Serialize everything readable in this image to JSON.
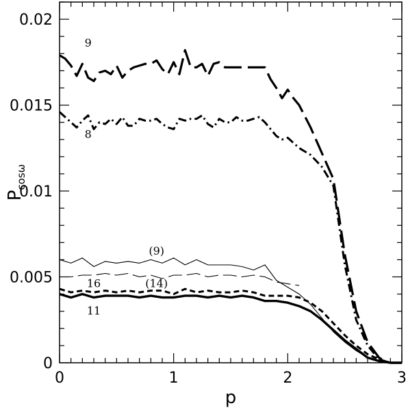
{
  "chart_data": {
    "type": "line",
    "xlabel": "p",
    "ylabel_main": "P",
    "ylabel_sub": "cosω",
    "xlim": [
      0,
      3
    ],
    "ylim": [
      0,
      0.021
    ],
    "xticks": [
      {
        "value": 0,
        "label": "0"
      },
      {
        "value": 1,
        "label": "1"
      },
      {
        "value": 2,
        "label": "2"
      },
      {
        "value": 3,
        "label": "3"
      }
    ],
    "yticks": [
      {
        "value": 0,
        "label": "0"
      },
      {
        "value": 0.005,
        "label": "0.005"
      },
      {
        "value": 0.01,
        "label": "0.01"
      },
      {
        "value": 0.015,
        "label": "0.015"
      },
      {
        "value": 0.02,
        "label": "0.02"
      }
    ],
    "grid": false,
    "series": [
      {
        "style": "long-dash-thick",
        "x": [
          0,
          0.05,
          0.1,
          0.15,
          0.2,
          0.25,
          0.3,
          0.35,
          0.4,
          0.45,
          0.5,
          0.55,
          0.6,
          0.65,
          0.7,
          0.75,
          0.8,
          0.85,
          0.9,
          0.95,
          1.0,
          1.05,
          1.1,
          1.15,
          1.2,
          1.25,
          1.3,
          1.35,
          1.4,
          1.45,
          1.5,
          1.55,
          1.6,
          1.65,
          1.7,
          1.75,
          1.8,
          1.85,
          1.9,
          1.95,
          2.0,
          2.05,
          2.1,
          2.2,
          2.3,
          2.4,
          2.5,
          2.6,
          2.7,
          2.8,
          2.85,
          2.9,
          3.0
        ],
        "y": [
          0.0179,
          0.0177,
          0.0173,
          0.0167,
          0.0174,
          0.0166,
          0.0164,
          0.0169,
          0.017,
          0.0168,
          0.0173,
          0.0166,
          0.017,
          0.0172,
          0.0173,
          0.0174,
          0.0174,
          0.0176,
          0.0171,
          0.0168,
          0.0175,
          0.0168,
          0.0182,
          0.0172,
          0.0172,
          0.0174,
          0.0167,
          0.0174,
          0.0175,
          0.0172,
          0.0172,
          0.0172,
          0.0172,
          0.0172,
          0.0172,
          0.0172,
          0.0172,
          0.0165,
          0.016,
          0.0154,
          0.0159,
          0.0154,
          0.015,
          0.0137,
          0.0122,
          0.0107,
          0.0063,
          0.003,
          0.0012,
          0.0003,
          0.0001,
          0.0,
          0.0
        ]
      },
      {
        "style": "dash-dot-thick",
        "x": [
          0,
          0.05,
          0.1,
          0.15,
          0.2,
          0.25,
          0.3,
          0.35,
          0.4,
          0.45,
          0.5,
          0.55,
          0.6,
          0.65,
          0.7,
          0.75,
          0.8,
          0.85,
          0.9,
          0.95,
          1.0,
          1.05,
          1.1,
          1.15,
          1.2,
          1.25,
          1.3,
          1.35,
          1.4,
          1.45,
          1.5,
          1.55,
          1.6,
          1.65,
          1.7,
          1.75,
          1.8,
          1.85,
          1.9,
          1.95,
          2.0,
          2.05,
          2.1,
          2.2,
          2.3,
          2.4,
          2.5,
          2.6,
          2.7,
          2.8,
          2.85,
          2.9,
          3.0
        ],
        "y": [
          0.0146,
          0.0143,
          0.014,
          0.0137,
          0.0141,
          0.0144,
          0.0136,
          0.014,
          0.0139,
          0.0142,
          0.0139,
          0.0143,
          0.0138,
          0.0138,
          0.0142,
          0.0141,
          0.0141,
          0.0142,
          0.0139,
          0.0137,
          0.0136,
          0.0142,
          0.0141,
          0.0142,
          0.0142,
          0.0144,
          0.0139,
          0.0137,
          0.0142,
          0.014,
          0.014,
          0.0143,
          0.0141,
          0.0141,
          0.0142,
          0.0143,
          0.014,
          0.0136,
          0.0132,
          0.013,
          0.0131,
          0.0128,
          0.0125,
          0.0121,
          0.0114,
          0.0103,
          0.0057,
          0.0025,
          0.001,
          0.0002,
          0.0001,
          0.0,
          0.0
        ]
      },
      {
        "style": "thin-solid",
        "x": [
          0,
          0.1,
          0.2,
          0.3,
          0.4,
          0.5,
          0.6,
          0.7,
          0.8,
          0.9,
          1.0,
          1.1,
          1.2,
          1.3,
          1.4,
          1.5,
          1.6,
          1.7,
          1.8,
          1.9,
          2.0,
          2.1,
          2.2,
          2.3,
          2.4,
          2.5,
          2.6,
          2.7,
          2.8,
          2.9,
          3.0
        ],
        "y": [
          0.006,
          0.0058,
          0.0061,
          0.0056,
          0.0059,
          0.0058,
          0.0059,
          0.0058,
          0.006,
          0.0058,
          0.0061,
          0.0057,
          0.006,
          0.0057,
          0.0057,
          0.0057,
          0.0056,
          0.0054,
          0.0057,
          0.0048,
          0.0044,
          0.004,
          0.0034,
          0.0026,
          0.0018,
          0.0012,
          0.0007,
          0.0003,
          0.0001,
          0.0,
          0.0
        ]
      },
      {
        "style": "thin-long-dash",
        "x": [
          0,
          0.1,
          0.2,
          0.3,
          0.4,
          0.5,
          0.6,
          0.7,
          0.8,
          0.9,
          1.0,
          1.1,
          1.2,
          1.3,
          1.4,
          1.5,
          1.6,
          1.7,
          1.8,
          1.9,
          2.0,
          2.1
        ],
        "y": [
          0.005,
          0.005,
          0.0051,
          0.0051,
          0.0052,
          0.0051,
          0.0052,
          0.005,
          0.0051,
          0.0049,
          0.0051,
          0.0051,
          0.0052,
          0.005,
          0.0051,
          0.0051,
          0.005,
          0.0051,
          0.005,
          0.0047,
          0.0046,
          0.0045
        ]
      },
      {
        "style": "short-dash-thick",
        "x": [
          0,
          0.1,
          0.2,
          0.3,
          0.4,
          0.5,
          0.6,
          0.7,
          0.8,
          0.9,
          1.0,
          1.1,
          1.2,
          1.3,
          1.4,
          1.5,
          1.6,
          1.7,
          1.8,
          1.9,
          2.0,
          2.1,
          2.2,
          2.3,
          2.4,
          2.5,
          2.6,
          2.7,
          2.8,
          2.9,
          3.0
        ],
        "y": [
          0.0043,
          0.0041,
          0.0042,
          0.0041,
          0.0042,
          0.0041,
          0.0042,
          0.0041,
          0.0042,
          0.0042,
          0.004,
          0.0043,
          0.0041,
          0.0042,
          0.0041,
          0.0041,
          0.0042,
          0.0041,
          0.0039,
          0.0039,
          0.0039,
          0.0038,
          0.0035,
          0.003,
          0.0023,
          0.0016,
          0.001,
          0.0005,
          0.0002,
          0.0,
          0.0
        ]
      },
      {
        "style": "thick-solid",
        "x": [
          0,
          0.1,
          0.2,
          0.3,
          0.4,
          0.5,
          0.6,
          0.7,
          0.8,
          0.9,
          1.0,
          1.1,
          1.2,
          1.3,
          1.4,
          1.5,
          1.6,
          1.7,
          1.8,
          1.9,
          2.0,
          2.1,
          2.2,
          2.3,
          2.4,
          2.5,
          2.6,
          2.7,
          2.8,
          2.9,
          3.0
        ],
        "y": [
          0.004,
          0.0038,
          0.004,
          0.0038,
          0.0039,
          0.0039,
          0.0039,
          0.0038,
          0.0039,
          0.0038,
          0.0038,
          0.0039,
          0.0039,
          0.0038,
          0.0039,
          0.0038,
          0.0039,
          0.0038,
          0.0036,
          0.0036,
          0.0035,
          0.0033,
          0.003,
          0.0025,
          0.0019,
          0.0013,
          0.0008,
          0.0003,
          0.0001,
          0.0,
          0.0
        ]
      }
    ],
    "annotations": [
      {
        "text": "9",
        "x": 0.25,
        "y": 0.0184
      },
      {
        "text": "8",
        "x": 0.25,
        "y": 0.0131
      },
      {
        "text": "(9)",
        "x": 0.85,
        "y": 0.0063
      },
      {
        "text": "16",
        "x": 0.3,
        "y": 0.0044
      },
      {
        "text": "(14)",
        "x": 0.85,
        "y": 0.0044
      },
      {
        "text": "11",
        "x": 0.3,
        "y": 0.0028
      }
    ]
  }
}
